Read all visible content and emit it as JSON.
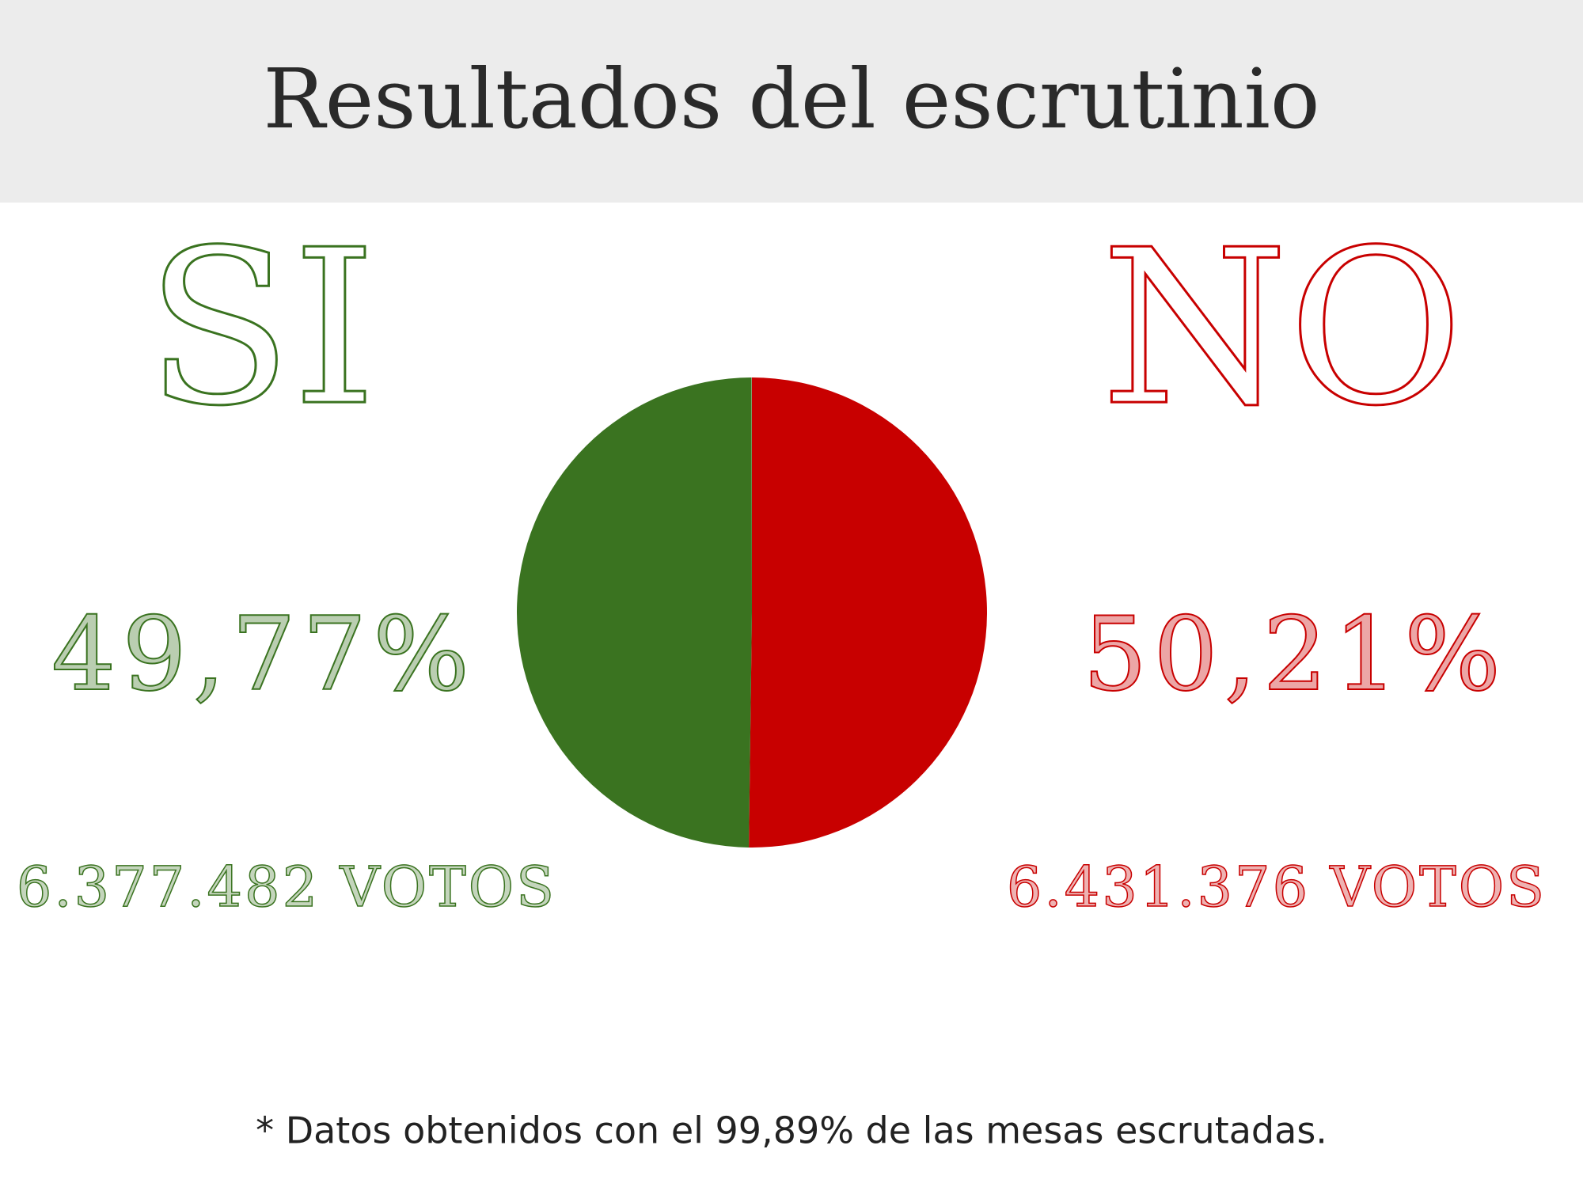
{
  "title": "Resultados del escrutinio",
  "chart_data": {
    "type": "pie",
    "categories": [
      "SI",
      "NO"
    ],
    "values": [
      49.77,
      50.21
    ],
    "value_labels": [
      "49,77%",
      "50,21%"
    ],
    "vote_labels": [
      "6.377.482 VOTOS",
      "6.431.376 VOTOS"
    ],
    "colors": [
      "#3a7320",
      "#c80000"
    ]
  },
  "footnote": "* Datos obtenidos con el 99,89% de las mesas escrutadas."
}
